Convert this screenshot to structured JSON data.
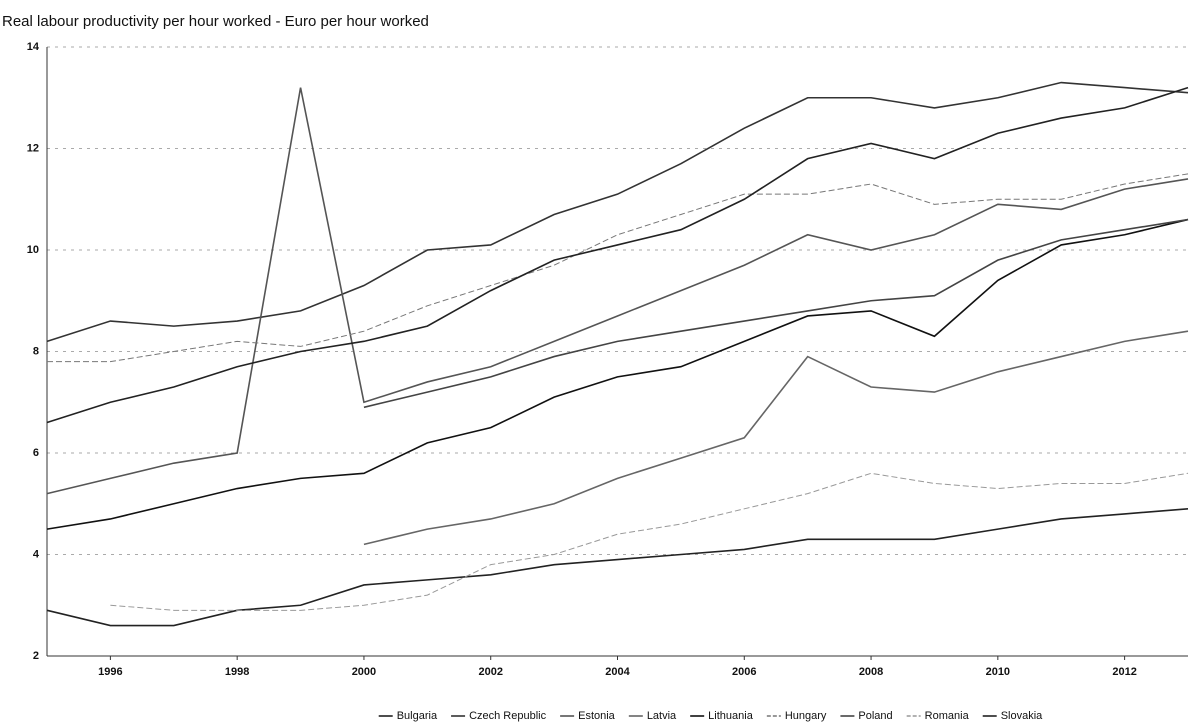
{
  "chart_data": {
    "type": "line",
    "title": "Real labour productivity per hour worked - Euro per hour worked",
    "x": [
      1995,
      1996,
      1997,
      1998,
      1999,
      2000,
      2001,
      2002,
      2003,
      2004,
      2005,
      2006,
      2007,
      2008,
      2009,
      2010,
      2011,
      2012,
      2013
    ],
    "xlim": [
      1995,
      2013
    ],
    "xticks": [
      1996,
      1998,
      2000,
      2002,
      2004,
      2006,
      2008,
      2010,
      2012
    ],
    "ylim": [
      2,
      14
    ],
    "yticks": [
      2,
      4,
      6,
      8,
      10,
      12,
      14
    ],
    "grid": true,
    "legend": "bottom",
    "series": [
      {
        "name": "Bulgaria",
        "color": "#222222",
        "dash": false,
        "values": [
          2.9,
          2.6,
          2.6,
          2.9,
          3.0,
          3.4,
          3.5,
          3.6,
          3.8,
          3.9,
          4.0,
          4.1,
          4.3,
          4.3,
          4.3,
          4.5,
          4.7,
          4.8,
          4.9
        ]
      },
      {
        "name": "Czech Republic",
        "color": "#333333",
        "dash": false,
        "values": [
          8.2,
          8.6,
          8.5,
          8.6,
          8.8,
          9.3,
          10.0,
          10.1,
          10.7,
          11.1,
          11.7,
          12.4,
          13.0,
          13.0,
          12.8,
          13.0,
          13.3,
          13.2,
          13.1
        ]
      },
      {
        "name": "Estonia",
        "color": "#555555",
        "dash": false,
        "values": [
          5.2,
          5.5,
          5.8,
          6.0,
          13.2,
          7.0,
          7.4,
          7.7,
          8.2,
          8.7,
          9.2,
          9.7,
          10.3,
          10.0,
          10.3,
          10.9,
          10.8,
          11.2,
          11.4
        ]
      },
      {
        "name": "Latvia",
        "color": "#666666",
        "dash": false,
        "values": [
          null,
          null,
          null,
          null,
          null,
          4.2,
          4.5,
          4.7,
          5.0,
          5.5,
          5.9,
          6.3,
          7.9,
          7.3,
          7.2,
          7.6,
          7.9,
          8.2,
          8.4
        ]
      },
      {
        "name": "Lithuania",
        "color": "#111111",
        "dash": false,
        "values": [
          4.5,
          4.7,
          5.0,
          5.3,
          5.5,
          5.6,
          6.2,
          6.5,
          7.1,
          7.5,
          7.7,
          8.2,
          8.7,
          8.8,
          8.3,
          9.4,
          10.1,
          10.3,
          10.6
        ]
      },
      {
        "name": "Hungary",
        "color": "#777777",
        "dash": true,
        "values": [
          7.8,
          7.8,
          8.0,
          8.2,
          8.1,
          8.4,
          8.9,
          9.3,
          9.7,
          10.3,
          10.7,
          11.1,
          11.1,
          11.3,
          10.9,
          11.0,
          11.0,
          11.3,
          11.5
        ]
      },
      {
        "name": "Poland",
        "color": "#444444",
        "dash": false,
        "values": [
          null,
          null,
          null,
          null,
          null,
          6.9,
          7.2,
          7.5,
          7.9,
          8.2,
          8.4,
          8.6,
          8.8,
          9.0,
          9.1,
          9.8,
          10.2,
          10.4,
          10.6
        ]
      },
      {
        "name": "Romania",
        "color": "#999999",
        "dash": true,
        "values": [
          null,
          3.0,
          2.9,
          2.9,
          2.9,
          3.0,
          3.2,
          3.8,
          4.0,
          4.4,
          4.6,
          4.9,
          5.2,
          5.6,
          5.4,
          5.3,
          5.4,
          5.4,
          5.6
        ]
      },
      {
        "name": "Slovakia",
        "color": "#222222",
        "dash": false,
        "values": [
          6.6,
          7.0,
          7.3,
          7.7,
          8.0,
          8.2,
          8.5,
          9.2,
          9.8,
          10.1,
          10.4,
          11.0,
          11.8,
          12.1,
          11.8,
          12.3,
          12.6,
          12.8,
          13.2
        ]
      }
    ]
  }
}
